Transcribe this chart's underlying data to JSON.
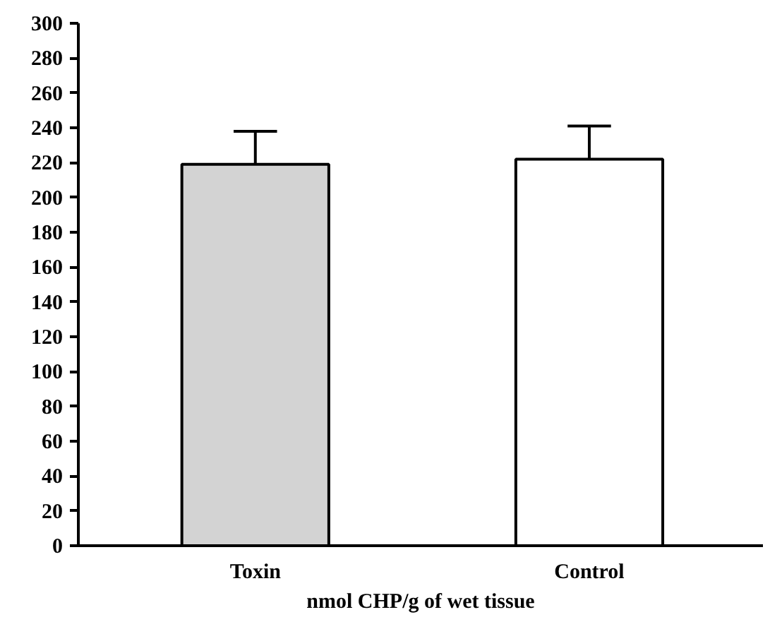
{
  "chart_data": {
    "type": "bar",
    "xlabel": "nmol CHP/g of wet tissue",
    "categories": [
      "Toxin",
      "Control"
    ],
    "values": [
      219,
      222
    ],
    "colors": [
      "#d3d3d3",
      "#ffffff"
    ],
    "errors": [
      [
        219,
        238
      ],
      [
        222,
        241
      ]
    ],
    "ylim": [
      0,
      300
    ],
    "yticks": [
      0,
      20,
      40,
      60,
      80,
      100,
      120,
      140,
      160,
      180,
      200,
      220,
      240,
      260,
      280,
      300
    ],
    "grid": false
  }
}
